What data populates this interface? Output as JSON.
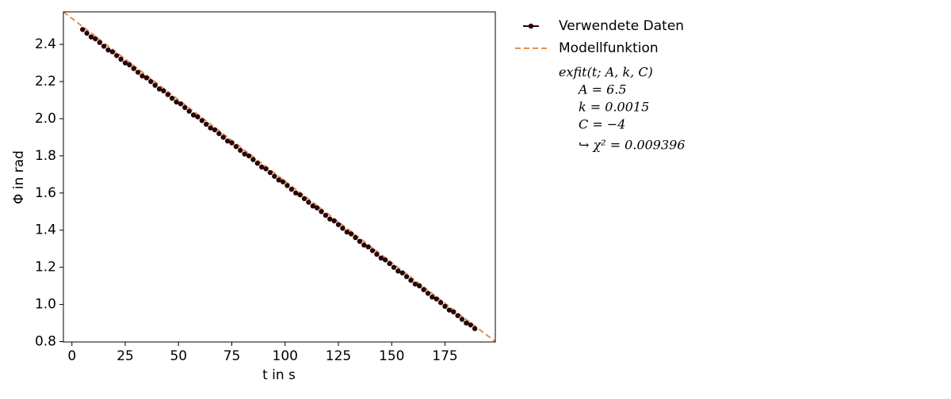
{
  "chart_data": {
    "type": "scatter",
    "xlabel": "t in s",
    "ylabel": "Φ in rad",
    "xlim": [
      -4,
      198.6
    ],
    "ylim": [
      0.798,
      2.575
    ],
    "xticks": [
      0,
      25,
      50,
      75,
      100,
      125,
      150,
      175
    ],
    "yticks": [
      0.8,
      {
        "value": 1,
        "label": "1.0"
      },
      1.2,
      1.4,
      1.6,
      1.8,
      {
        "value": 2,
        "label": "2.0"
      },
      2.2,
      2.4
    ],
    "legend": "outside-upper-right",
    "series": [
      {
        "name": "Verwendete Daten",
        "color": "#2a0505",
        "style": "markers",
        "x": [
          5,
          7,
          9,
          11,
          13,
          15,
          17,
          19,
          21,
          23,
          25,
          27,
          29,
          31,
          33,
          35,
          37,
          39,
          41,
          43,
          45,
          47,
          49,
          51,
          53,
          55,
          57,
          59,
          61,
          63,
          65,
          67,
          69,
          71,
          73,
          75,
          77,
          79,
          81,
          83,
          85,
          87,
          89,
          91,
          93,
          95,
          97,
          99,
          101,
          103,
          105,
          107,
          109,
          111,
          113,
          115,
          117,
          119,
          121,
          123,
          125,
          127,
          129,
          131,
          133,
          135,
          137,
          139,
          141,
          143,
          145,
          147,
          149,
          151,
          153,
          155,
          157,
          159,
          161,
          163,
          165,
          167,
          169,
          171,
          173,
          175,
          177,
          179,
          181,
          183,
          185,
          187,
          189
        ],
        "values": [
          2.48,
          2.46,
          2.44,
          2.43,
          2.41,
          2.39,
          2.37,
          2.36,
          2.34,
          2.32,
          2.3,
          2.29,
          2.27,
          2.25,
          2.23,
          2.22,
          2.2,
          2.18,
          2.16,
          2.15,
          2.13,
          2.11,
          2.09,
          2.08,
          2.06,
          2.04,
          2.02,
          2.01,
          1.99,
          1.97,
          1.95,
          1.94,
          1.92,
          1.9,
          1.88,
          1.87,
          1.85,
          1.83,
          1.81,
          1.8,
          1.78,
          1.76,
          1.74,
          1.73,
          1.71,
          1.69,
          1.67,
          1.66,
          1.64,
          1.62,
          1.6,
          1.59,
          1.57,
          1.55,
          1.53,
          1.52,
          1.5,
          1.48,
          1.46,
          1.45,
          1.43,
          1.41,
          1.39,
          1.38,
          1.36,
          1.34,
          1.32,
          1.31,
          1.29,
          1.27,
          1.25,
          1.24,
          1.22,
          1.2,
          1.18,
          1.17,
          1.15,
          1.13,
          1.11,
          1.1,
          1.08,
          1.06,
          1.04,
          1.03,
          1.01,
          0.99,
          0.97,
          0.96,
          0.94,
          0.92,
          0.9,
          0.89,
          0.87
        ]
      },
      {
        "name": "Modellfunktion",
        "color": "#e0915a",
        "style": "dashed",
        "x": [
          -4,
          198.6
        ],
        "values": [
          2.575,
          0.8
        ]
      }
    ],
    "legend_notes": [
      "exfit(t; A, k, C)",
      "A = 6.5",
      "k = 0.0015",
      "C = −4",
      "↪ χ² = 0.009396"
    ]
  }
}
